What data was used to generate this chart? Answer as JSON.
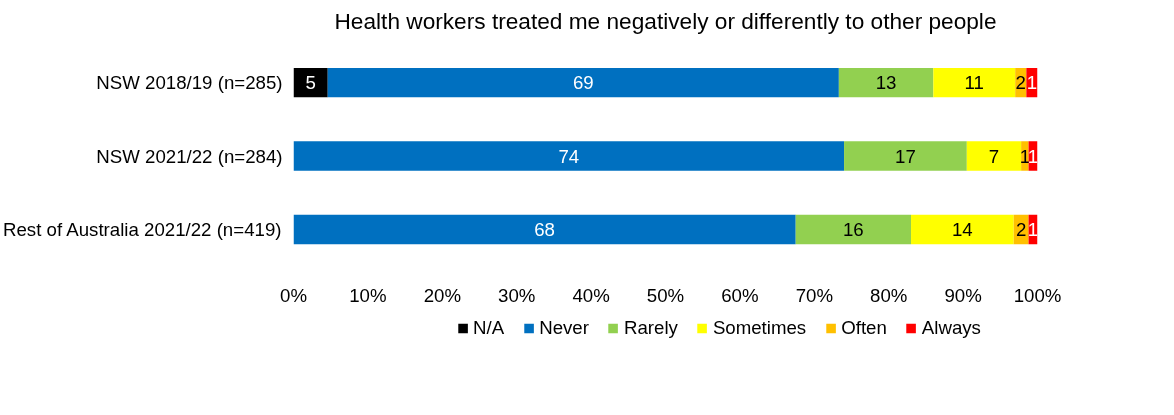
{
  "chart_data": {
    "type": "bar",
    "orientation": "horizontal",
    "stacked": true,
    "title": "Health workers treated me negatively or differently to other people",
    "categories": [
      "NSW 2018/19 (n=285)",
      "NSW 2021/22 (n=284)",
      "Rest of Australia 2021/22 (n=419)"
    ],
    "series": [
      {
        "name": "N/A",
        "color": "#000000",
        "values": [
          4.6,
          null,
          null
        ],
        "value_labels": [
          "5",
          null,
          null
        ]
      },
      {
        "name": "Never",
        "color": "#0070c0",
        "values": [
          68.7,
          74,
          67.5
        ],
        "value_labels": [
          "69",
          "74",
          "68"
        ]
      },
      {
        "name": "Rarely",
        "color": "#92d050",
        "values": [
          12.7,
          16.5,
          15.5
        ],
        "value_labels": [
          "13",
          "17",
          "16"
        ]
      },
      {
        "name": "Sometimes",
        "color": "#ffff00",
        "values": [
          11,
          7.3,
          13.8
        ],
        "value_labels": [
          "11",
          "7",
          "14"
        ]
      },
      {
        "name": "Often",
        "color": "#ffc000",
        "values": [
          1.5,
          1.0,
          2.0
        ],
        "value_labels": [
          "2",
          "1",
          "2"
        ]
      },
      {
        "name": "Always",
        "color": "#ff0000",
        "values": [
          1.5,
          1.2,
          1.2
        ],
        "value_labels": [
          "1",
          "1",
          "1"
        ]
      }
    ],
    "xlim": [
      0,
      100
    ],
    "xticks": [
      {
        "value": 0,
        "label": "0%"
      },
      {
        "value": 10,
        "label": "10%"
      },
      {
        "value": 20,
        "label": "20%"
      },
      {
        "value": 30,
        "label": "30%"
      },
      {
        "value": 40,
        "label": "40%"
      },
      {
        "value": 50,
        "label": "50%"
      },
      {
        "value": 60,
        "label": "60%"
      },
      {
        "value": 70,
        "label": "70%"
      },
      {
        "value": 80,
        "label": "80%"
      },
      {
        "value": 90,
        "label": "90%"
      },
      {
        "value": 100,
        "label": "100%"
      }
    ],
    "grid": false,
    "legend": "bottom"
  }
}
